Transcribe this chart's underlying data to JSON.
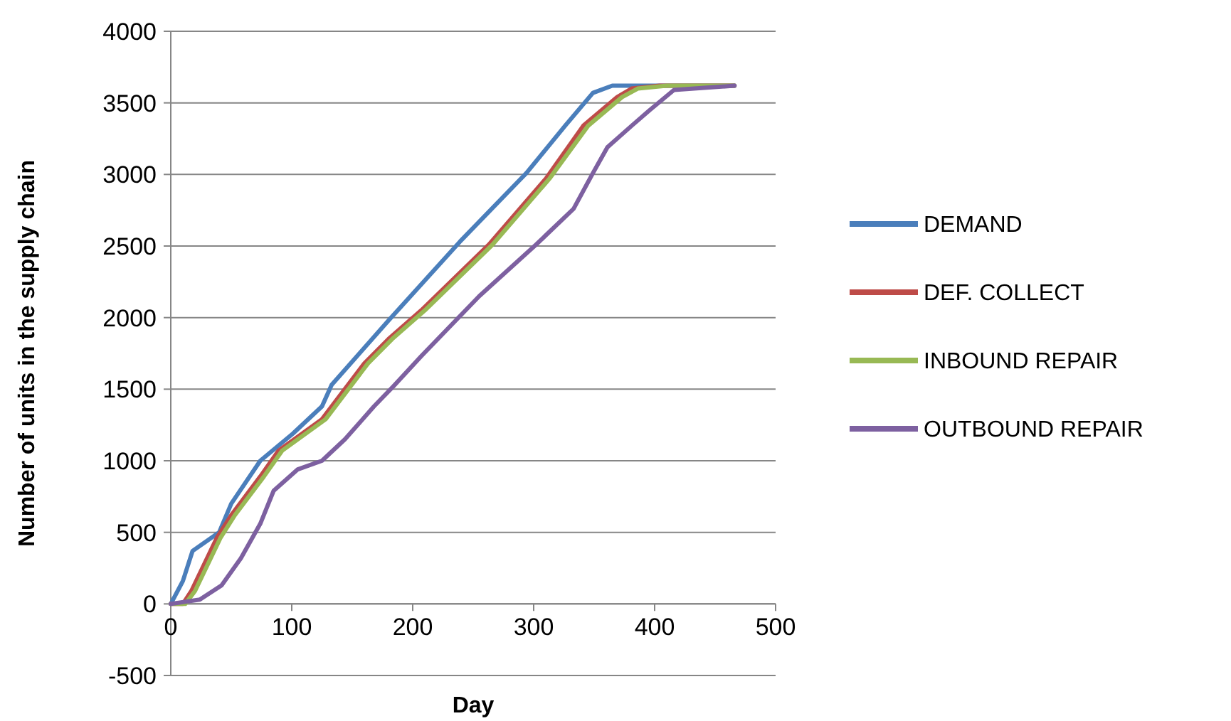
{
  "chart_data": {
    "type": "line",
    "xlabel": "Day",
    "ylabel": "Number of units in the supply chain",
    "xlim": [
      0,
      500
    ],
    "xticks": [
      0,
      100,
      200,
      300,
      400,
      500
    ],
    "ylim": [
      -500,
      4000
    ],
    "yticks": [
      -500,
      0,
      500,
      1000,
      1500,
      2000,
      2500,
      3000,
      3500,
      4000
    ],
    "grid": "y",
    "legend": "right",
    "marker": "none",
    "line_style": "solid",
    "series": [
      {
        "name": "DEMAND",
        "color": "#4a7ebb",
        "x": [
          0,
          10,
          18,
          40,
          50,
          74,
          101,
          125,
          133,
          180,
          239,
          294,
          326,
          349,
          365,
          466
        ],
        "values": [
          0,
          160,
          370,
          500,
          700,
          1000,
          1190,
          1380,
          1530,
          1980,
          2530,
          3010,
          3340,
          3570,
          3620,
          3620
        ]
      },
      {
        "name": "DEF. COLLECT",
        "color": "#be4b48",
        "x": [
          0,
          10,
          17,
          38,
          50,
          74,
          89,
          125,
          160,
          180,
          207,
          263,
          310,
          341,
          369,
          381,
          404,
          466
        ],
        "values": [
          0,
          0,
          90,
          460,
          620,
          890,
          1070,
          1290,
          1680,
          1850,
          2050,
          2510,
          2970,
          3340,
          3540,
          3600,
          3620,
          3620
        ]
      },
      {
        "name": "INBOUND REPAIR",
        "color": "#98b954",
        "x": [
          0,
          12,
          20,
          41,
          53,
          77,
          92,
          128,
          163,
          183,
          210,
          266,
          313,
          345,
          373,
          386,
          410,
          466
        ],
        "values": [
          0,
          0,
          90,
          460,
          620,
          890,
          1070,
          1290,
          1680,
          1850,
          2050,
          2510,
          2970,
          3340,
          3540,
          3600,
          3620,
          3620
        ]
      },
      {
        "name": "OUTBOUND REPAIR",
        "color": "#7d60a0",
        "x": [
          0,
          24,
          42,
          58,
          74,
          85,
          105,
          125,
          144,
          168,
          184,
          207,
          255,
          302,
          333,
          349,
          361,
          381,
          396,
          416,
          466
        ],
        "values": [
          0,
          30,
          130,
          320,
          560,
          790,
          940,
          1000,
          1150,
          1380,
          1520,
          1730,
          2150,
          2510,
          2760,
          3010,
          3190,
          3340,
          3450,
          3590,
          3620
        ]
      }
    ]
  }
}
